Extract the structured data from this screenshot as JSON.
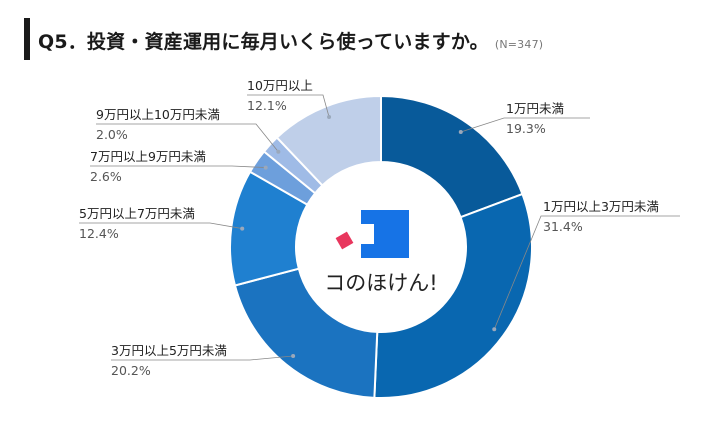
{
  "header": {
    "title": "Q5．投資・資産運用に毎月いくら使っていますか。",
    "note": "(N=347)"
  },
  "logo": {
    "text": "コのほけん!"
  },
  "chart_data": {
    "type": "pie",
    "categories": [
      "1万円未満",
      "1万円以上3万円未満",
      "3万円以上5万円未満",
      "5万円以上7万円未満",
      "7万円以上9万円未満",
      "9万円以上10万円未満",
      "10万円以上"
    ],
    "values": [
      19.3,
      31.4,
      20.2,
      12.4,
      2.6,
      2.0,
      12.1
    ],
    "value_labels": [
      "19.3%",
      "31.4%",
      "20.2%",
      "12.4%",
      "2.6%",
      "2.0%",
      "12.1%"
    ],
    "colors": [
      "#085a9a",
      "#0967b0",
      "#1b73c0",
      "#1f80d0",
      "#6d9fdc",
      "#9fbbe6",
      "#bfcfe9"
    ],
    "style": "donut"
  }
}
